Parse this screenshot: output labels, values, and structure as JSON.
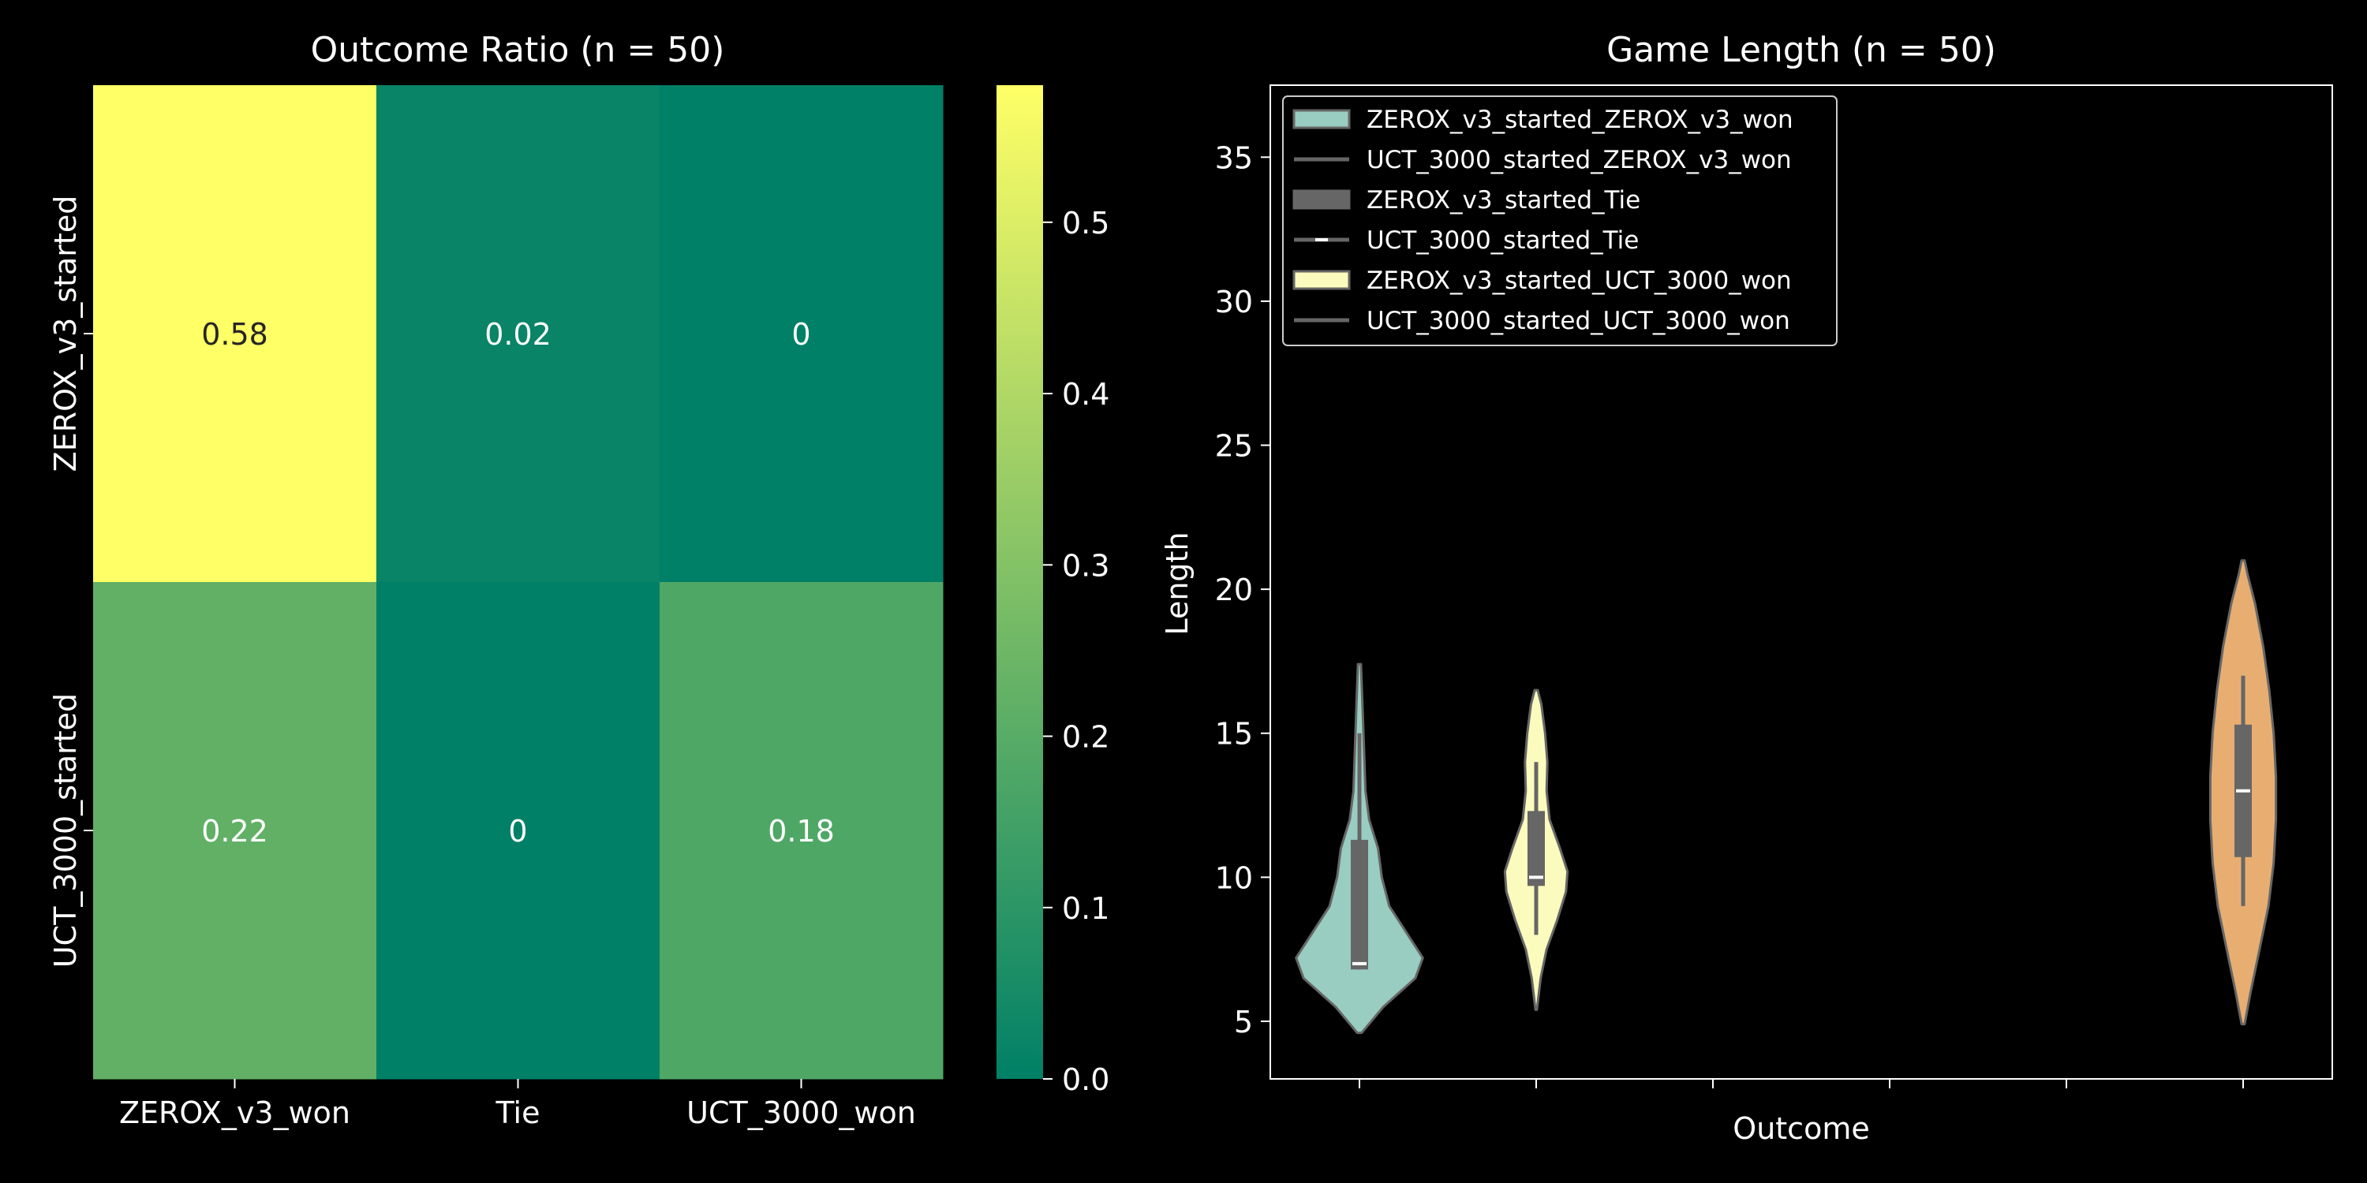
{
  "chart_data": [
    {
      "type": "heatmap",
      "title": "Outcome Ratio (n = 50)",
      "row_labels": [
        "ZEROX_v3_started",
        "UCT_3000_started"
      ],
      "col_labels": [
        "ZEROX_v3_won",
        "Tie",
        "UCT_3000_won"
      ],
      "values": [
        [
          0.58,
          0.02,
          0
        ],
        [
          0.22,
          0,
          0.18
        ]
      ],
      "cell_labels": [
        [
          "0.58",
          "0.02",
          "0"
        ],
        [
          "0.22",
          "0",
          "0.18"
        ]
      ],
      "colorbar": {
        "colormap": "summer",
        "vmin": 0,
        "vmax": 0.58,
        "ticks": [
          0.0,
          0.1,
          0.2,
          0.3,
          0.4,
          0.5
        ],
        "tick_labels": [
          "0.0",
          "0.1",
          "0.2",
          "0.3",
          "0.4",
          "0.5"
        ]
      }
    },
    {
      "type": "violin",
      "title": "Game Length (n = 50)",
      "xlabel": "Outcome",
      "ylabel": "Length",
      "ylim": [
        3,
        37.5
      ],
      "y_ticks": [
        5,
        10,
        15,
        20,
        25,
        30,
        35
      ],
      "x_positions": [
        0,
        1,
        2,
        3,
        4,
        5
      ],
      "legend": {
        "placement": "top-left",
        "entries": [
          "ZEROX_v3_started_ZEROX_v3_won",
          "UCT_3000_started_ZEROX_v3_won",
          "ZEROX_v3_started_Tie",
          "UCT_3000_started_Tie",
          "ZEROX_v3_started_UCT_3000_won",
          "UCT_3000_started_UCT_3000_won"
        ]
      },
      "series": [
        {
          "position": 0,
          "color": "#99cdc1",
          "range": [
            4.6,
            17.4
          ],
          "whiskers": [
            6.8,
            15.0
          ],
          "box": [
            6.8,
            11.3
          ],
          "median": 7.0,
          "density": [
            [
              4.6,
              0.03
            ],
            [
              5.5,
              0.32
            ],
            [
              6.5,
              0.75
            ],
            [
              7.2,
              0.85
            ],
            [
              8.0,
              0.65
            ],
            [
              9.0,
              0.4
            ],
            [
              10.0,
              0.3
            ],
            [
              11.0,
              0.25
            ],
            [
              12.0,
              0.13
            ],
            [
              13.0,
              0.08
            ],
            [
              14.5,
              0.06
            ],
            [
              16.0,
              0.04
            ],
            [
              17.4,
              0.02
            ]
          ]
        },
        {
          "position": 1,
          "color": "#fbfbbe",
          "range": [
            5.4,
            16.5
          ],
          "whiskers": [
            8.0,
            14.0
          ],
          "box": [
            9.7,
            12.3
          ],
          "median": 10.0,
          "density": [
            [
              5.4,
              0.01
            ],
            [
              6.5,
              0.06
            ],
            [
              7.5,
              0.14
            ],
            [
              8.5,
              0.28
            ],
            [
              9.5,
              0.4
            ],
            [
              10.2,
              0.42
            ],
            [
              11.0,
              0.32
            ],
            [
              12.0,
              0.18
            ],
            [
              13.0,
              0.14
            ],
            [
              14.0,
              0.15
            ],
            [
              15.0,
              0.12
            ],
            [
              16.0,
              0.07
            ],
            [
              16.5,
              0.02
            ]
          ]
        },
        {
          "position": 5,
          "color": "#e8ae71",
          "range": [
            4.9,
            21.0
          ],
          "whiskers": [
            9.0,
            17.0
          ],
          "box": [
            10.7,
            15.3
          ],
          "median": 13.0,
          "density": [
            [
              4.9,
              0.02
            ],
            [
              6.0,
              0.1
            ],
            [
              7.5,
              0.22
            ],
            [
              9.0,
              0.34
            ],
            [
              10.5,
              0.41
            ],
            [
              12.0,
              0.44
            ],
            [
              13.5,
              0.44
            ],
            [
              15.0,
              0.41
            ],
            [
              16.5,
              0.35
            ],
            [
              18.0,
              0.27
            ],
            [
              19.5,
              0.16
            ],
            [
              20.5,
              0.06
            ],
            [
              21.0,
              0.02
            ]
          ]
        }
      ]
    }
  ]
}
